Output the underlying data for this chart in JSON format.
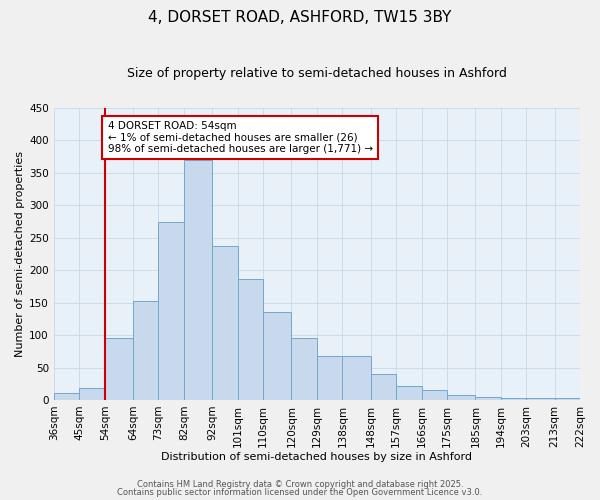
{
  "title": "4, DORSET ROAD, ASHFORD, TW15 3BY",
  "subtitle": "Size of property relative to semi-detached houses in Ashford",
  "xlabel": "Distribution of semi-detached houses by size in Ashford",
  "ylabel": "Number of semi-detached properties",
  "bin_edges": [
    36,
    45,
    54,
    64,
    73,
    82,
    92,
    101,
    110,
    120,
    129,
    138,
    148,
    157,
    166,
    175,
    185,
    194,
    203,
    213,
    222
  ],
  "bin_labels": [
    "36sqm",
    "45sqm",
    "54sqm",
    "64sqm",
    "73sqm",
    "82sqm",
    "92sqm",
    "101sqm",
    "110sqm",
    "120sqm",
    "129sqm",
    "138sqm",
    "148sqm",
    "157sqm",
    "166sqm",
    "175sqm",
    "185sqm",
    "194sqm",
    "203sqm",
    "213sqm",
    "222sqm"
  ],
  "values": [
    10,
    18,
    96,
    152,
    275,
    370,
    237,
    187,
    136,
    96,
    68,
    68,
    40,
    22,
    16,
    8,
    5,
    3,
    3,
    3
  ],
  "bar_fill_color": "#c9d9ed",
  "bar_edge_color": "#6fa8d0",
  "vline_x_bin_index": 2,
  "vline_color": "#cc0000",
  "annotation_line1": "4 DORSET ROAD: 54sqm",
  "annotation_line2": "← 1% of semi-detached houses are smaller (26)",
  "annotation_line3": "98% of semi-detached houses are larger (1,771) →",
  "annotation_box_color": "#ffffff",
  "annotation_box_edge_color": "#cc0000",
  "ylim": [
    0,
    450
  ],
  "yticks": [
    0,
    50,
    100,
    150,
    200,
    250,
    300,
    350,
    400,
    450
  ],
  "grid_color": "#c8d8e8",
  "plot_bg_color": "#e8f0f8",
  "fig_bg_color": "#f0f0f0",
  "footer1": "Contains HM Land Registry data © Crown copyright and database right 2025.",
  "footer2": "Contains public sector information licensed under the Open Government Licence v3.0.",
  "title_fontsize": 11,
  "subtitle_fontsize": 9,
  "axis_label_fontsize": 8,
  "tick_fontsize": 7.5,
  "annotation_fontsize": 7.5,
  "footer_fontsize": 6
}
